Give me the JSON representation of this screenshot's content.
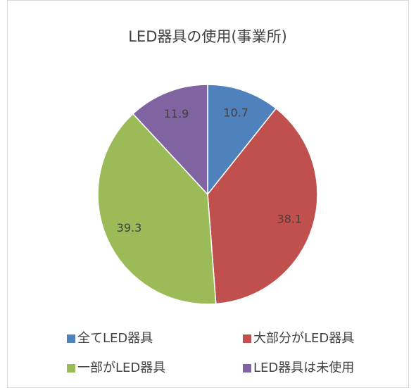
{
  "chart_data": {
    "type": "pie",
    "title": "LED器具の使用(事業所)",
    "categories": [
      "全てLED器具",
      "大部分がLED器具",
      "一部がLED器具",
      "LED器具は未使用"
    ],
    "values": [
      10.7,
      38.1,
      39.3,
      11.9
    ],
    "colors": [
      "#4f81bd",
      "#c0504d",
      "#9bbb59",
      "#8064a2"
    ],
    "legend": "bottom"
  }
}
